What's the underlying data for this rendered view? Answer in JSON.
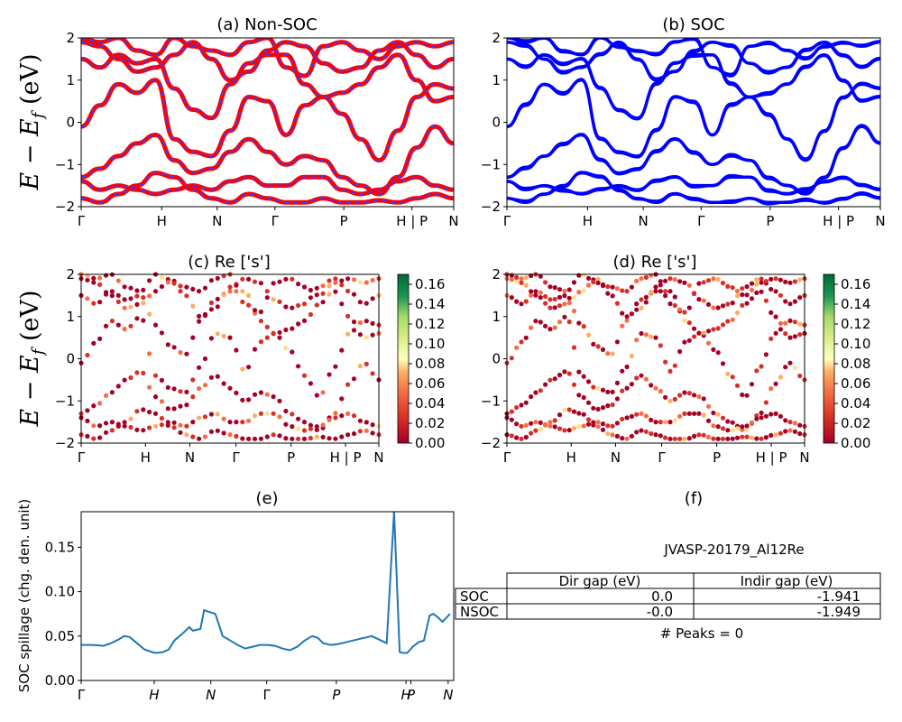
{
  "figure": {
    "ylabel_bands": "E − E_f (eV)",
    "ylabel_spillage": "SOC spillage (chg. den. unit)"
  },
  "colors": {
    "nonsoc_red": "#ff0000",
    "nonsoc_blue": "#3b3bff",
    "soc_blue": "#0000ff",
    "spillage_line": "#1f77b4"
  },
  "chart_data": [
    {
      "id": "a",
      "type": "line",
      "title": "(a) Non-SOC",
      "ylim": [
        -2,
        2
      ],
      "yticks": [
        "2",
        "1",
        "0",
        "−1",
        "−2"
      ],
      "xticks": [
        "Γ",
        "H",
        "N",
        "Γ",
        "P",
        "H | P",
        "N"
      ],
      "xtick_pos": [
        0,
        0.216,
        0.365,
        0.52,
        0.705,
        0.888,
        1.0
      ],
      "series": [
        {
          "x": [
            0,
            0.05,
            0.1,
            0.15,
            0.2,
            0.25,
            0.3,
            0.35,
            0.4,
            0.45,
            0.5,
            0.55,
            0.6,
            0.65,
            0.7,
            0.75,
            0.8,
            0.85,
            0.9,
            0.95,
            1
          ],
          "values": [
            -0.1,
            0.4,
            0.9,
            0.7,
            1.0,
            -0.4,
            -0.7,
            -0.8,
            -0.2,
            0.6,
            0.5,
            -0.3,
            0.4,
            0.6,
            0.2,
            -0.4,
            -0.9,
            -0.2,
            0.6,
            0.9,
            0.8
          ]
        },
        {
          "x": [
            0,
            0.05,
            0.1,
            0.15,
            0.2,
            0.25,
            0.3,
            0.35,
            0.4,
            0.45,
            0.5,
            0.55,
            0.6,
            0.65,
            0.7,
            0.75,
            0.8,
            0.85,
            0.9,
            0.95,
            1
          ],
          "values": [
            1.5,
            1.3,
            1.6,
            1.4,
            1.5,
            0.8,
            0.3,
            0.1,
            0.9,
            1.4,
            1.6,
            1.6,
            0.9,
            0.6,
            0.7,
            0.9,
            1.3,
            1.6,
            1.0,
            0.5,
            0.6
          ]
        },
        {
          "x": [
            0,
            0.05,
            0.1,
            0.15,
            0.2,
            0.25,
            0.3,
            0.35,
            0.4,
            0.45,
            0.5,
            0.55,
            0.6,
            0.65,
            0.7,
            0.75,
            0.8,
            0.85,
            0.9,
            0.95,
            1
          ],
          "values": [
            -1.3,
            -1.1,
            -0.8,
            -0.5,
            -0.3,
            -0.9,
            -1.2,
            -1.1,
            -0.7,
            -0.4,
            -0.7,
            -1.0,
            -0.8,
            -0.9,
            -1.3,
            -1.5,
            -1.7,
            -1.3,
            -0.6,
            -0.1,
            -0.5
          ]
        },
        {
          "x": [
            0,
            0.05,
            0.1,
            0.15,
            0.2,
            0.25,
            0.3,
            0.35,
            0.4,
            0.45,
            0.5,
            0.55,
            0.6,
            0.65,
            0.7,
            0.75,
            0.8,
            0.85,
            0.9,
            0.95,
            1
          ],
          "values": [
            -1.4,
            -1.6,
            -1.5,
            -1.6,
            -1.7,
            -1.6,
            -1.5,
            -1.6,
            -1.4,
            -1.3,
            -1.5,
            -1.5,
            -1.3,
            -1.3,
            -1.6,
            -1.7,
            -1.6,
            -1.4,
            -1.3,
            -1.5,
            -1.6
          ]
        },
        {
          "x": [
            0,
            0.05,
            0.1,
            0.15,
            0.2,
            0.25,
            0.3,
            0.35,
            0.4,
            0.45,
            0.5,
            0.55,
            0.6,
            0.65,
            0.7,
            0.75,
            0.8,
            0.85,
            0.9,
            0.95,
            1
          ],
          "values": [
            -1.8,
            -1.9,
            -1.7,
            -1.5,
            -1.2,
            -1.3,
            -1.6,
            -1.8,
            -1.9,
            -1.7,
            -1.8,
            -1.9,
            -1.9,
            -1.8,
            -1.9,
            -1.9,
            -1.85,
            -1.9,
            -1.8,
            -1.7,
            -1.8
          ]
        },
        {
          "x": [
            0,
            0.05,
            0.1,
            0.15,
            0.2,
            0.25,
            0.3,
            0.35,
            0.4,
            0.45,
            0.5,
            0.55,
            0.6,
            0.65,
            0.7,
            0.75,
            0.8,
            0.85,
            0.9,
            0.95,
            1
          ],
          "values": [
            1.9,
            1.8,
            1.5,
            1.2,
            1.3,
            1.6,
            1.9,
            1.5,
            1.0,
            1.2,
            1.7,
            1.9,
            1.8,
            1.4,
            1.2,
            1.3,
            1.7,
            1.9,
            1.6,
            1.3,
            1.5
          ]
        },
        {
          "x": [
            0,
            0.05,
            0.1,
            0.15,
            0.2,
            0.25,
            0.3,
            0.35,
            0.4,
            0.45,
            0.5,
            0.55,
            0.6,
            0.65,
            0.7,
            0.75,
            0.8,
            0.85,
            0.9,
            0.95,
            1
          ],
          "values": [
            2.0,
            1.9,
            2.0,
            1.7,
            1.6,
            2.0,
            1.8,
            1.7,
            1.6,
            1.9,
            2.0,
            1.3,
            1.1,
            1.8,
            1.9,
            1.7,
            1.5,
            1.8,
            1.9,
            1.8,
            1.9
          ]
        }
      ]
    },
    {
      "id": "b",
      "type": "line",
      "title": "(b) SOC",
      "ylim": [
        -2,
        2
      ],
      "yticks": [
        "2",
        "1",
        "0",
        "−1",
        "−2"
      ],
      "xticks": [
        "Γ",
        "H",
        "N",
        "Γ",
        "P",
        "H | P",
        "N"
      ],
      "xtick_pos": [
        0,
        0.216,
        0.365,
        0.52,
        0.705,
        0.888,
        1.0
      ],
      "series": [
        {
          "x": [
            0,
            0.05,
            0.1,
            0.15,
            0.2,
            0.25,
            0.3,
            0.35,
            0.4,
            0.45,
            0.5,
            0.55,
            0.6,
            0.65,
            0.7,
            0.75,
            0.8,
            0.85,
            0.9,
            0.95,
            1
          ],
          "values": [
            -0.1,
            0.4,
            0.9,
            0.7,
            1.0,
            -0.4,
            -0.7,
            -0.8,
            -0.2,
            0.6,
            0.5,
            -0.3,
            0.4,
            0.6,
            0.2,
            -0.4,
            -0.9,
            -0.2,
            0.6,
            0.9,
            0.8
          ]
        },
        {
          "x": [
            0,
            0.05,
            0.1,
            0.15,
            0.2,
            0.25,
            0.3,
            0.35,
            0.4,
            0.45,
            0.5,
            0.55,
            0.6,
            0.65,
            0.7,
            0.75,
            0.8,
            0.85,
            0.9,
            0.95,
            1
          ],
          "values": [
            1.5,
            1.3,
            1.6,
            1.4,
            1.5,
            0.8,
            0.3,
            0.1,
            0.9,
            1.4,
            1.6,
            1.6,
            0.9,
            0.6,
            0.7,
            0.9,
            1.3,
            1.6,
            1.0,
            0.5,
            0.6
          ]
        },
        {
          "x": [
            0,
            0.05,
            0.1,
            0.15,
            0.2,
            0.25,
            0.3,
            0.35,
            0.4,
            0.45,
            0.5,
            0.55,
            0.6,
            0.65,
            0.7,
            0.75,
            0.8,
            0.85,
            0.9,
            0.95,
            1
          ],
          "values": [
            -1.3,
            -1.1,
            -0.8,
            -0.5,
            -0.3,
            -0.9,
            -1.2,
            -1.1,
            -0.7,
            -0.4,
            -0.7,
            -1.0,
            -0.8,
            -0.9,
            -1.3,
            -1.5,
            -1.7,
            -1.3,
            -0.6,
            -0.1,
            -0.5
          ]
        },
        {
          "x": [
            0,
            0.05,
            0.1,
            0.15,
            0.2,
            0.25,
            0.3,
            0.35,
            0.4,
            0.45,
            0.5,
            0.55,
            0.6,
            0.65,
            0.7,
            0.75,
            0.8,
            0.85,
            0.9,
            0.95,
            1
          ],
          "values": [
            -1.4,
            -1.6,
            -1.5,
            -1.6,
            -1.7,
            -1.6,
            -1.5,
            -1.6,
            -1.4,
            -1.3,
            -1.5,
            -1.5,
            -1.3,
            -1.3,
            -1.6,
            -1.7,
            -1.6,
            -1.4,
            -1.3,
            -1.5,
            -1.6
          ]
        },
        {
          "x": [
            0,
            0.05,
            0.1,
            0.15,
            0.2,
            0.25,
            0.3,
            0.35,
            0.4,
            0.45,
            0.5,
            0.55,
            0.6,
            0.65,
            0.7,
            0.75,
            0.8,
            0.85,
            0.9,
            0.95,
            1
          ],
          "values": [
            -1.8,
            -1.9,
            -1.7,
            -1.5,
            -1.2,
            -1.3,
            -1.6,
            -1.8,
            -1.9,
            -1.7,
            -1.8,
            -1.9,
            -1.9,
            -1.8,
            -1.9,
            -1.9,
            -1.85,
            -1.9,
            -1.8,
            -1.7,
            -1.8
          ]
        },
        {
          "x": [
            0,
            0.05,
            0.1,
            0.15,
            0.2,
            0.25,
            0.3,
            0.35,
            0.4,
            0.45,
            0.5,
            0.55,
            0.6,
            0.65,
            0.7,
            0.75,
            0.8,
            0.85,
            0.9,
            0.95,
            1
          ],
          "values": [
            1.9,
            1.8,
            1.5,
            1.2,
            1.3,
            1.6,
            1.9,
            1.5,
            1.0,
            1.2,
            1.7,
            1.9,
            1.8,
            1.4,
            1.2,
            1.3,
            1.7,
            1.9,
            1.6,
            1.3,
            1.5
          ]
        },
        {
          "x": [
            0,
            0.05,
            0.1,
            0.15,
            0.2,
            0.25,
            0.3,
            0.35,
            0.4,
            0.45,
            0.5,
            0.55,
            0.6,
            0.65,
            0.7,
            0.75,
            0.8,
            0.85,
            0.9,
            0.95,
            1
          ],
          "values": [
            2.0,
            1.9,
            2.0,
            1.7,
            1.6,
            2.0,
            1.8,
            1.7,
            1.6,
            1.9,
            2.0,
            1.3,
            1.1,
            1.8,
            1.9,
            1.7,
            1.5,
            1.8,
            1.9,
            1.8,
            1.9
          ]
        }
      ]
    },
    {
      "id": "c",
      "type": "scatter",
      "title": "(c)  Re ['s']",
      "ylim": [
        -2,
        2
      ],
      "yticks": [
        "2",
        "1",
        "0",
        "−1",
        "−2"
      ],
      "xticks": [
        "Γ",
        "H",
        "N",
        "Γ",
        "P",
        "H | P",
        "N"
      ],
      "xtick_pos": [
        0,
        0.216,
        0.365,
        0.52,
        0.705,
        0.888,
        1.0
      ],
      "colorbar": {
        "range": [
          0,
          0.17
        ],
        "ticks": [
          "0.16",
          "0.14",
          "0.12",
          "0.10",
          "0.08",
          "0.06",
          "0.04",
          "0.02",
          "0.00"
        ]
      }
    },
    {
      "id": "d",
      "type": "scatter",
      "title": "(d) Re ['s']",
      "ylim": [
        -2,
        2
      ],
      "yticks": [
        "2",
        "1",
        "0",
        "−1",
        "−2"
      ],
      "xticks": [
        "Γ",
        "H",
        "N",
        "Γ",
        "P",
        "H | P",
        "N"
      ],
      "xtick_pos": [
        0,
        0.216,
        0.365,
        0.52,
        0.705,
        0.888,
        1.0
      ],
      "colorbar": {
        "range": [
          0,
          0.17
        ],
        "ticks": [
          "0.16",
          "0.14",
          "0.12",
          "0.10",
          "0.08",
          "0.06",
          "0.04",
          "0.02",
          "0.00"
        ]
      }
    },
    {
      "id": "e",
      "type": "line",
      "title": "(e)",
      "ylabel": "SOC spillage (chg. den. unit)",
      "ylim": [
        0,
        0.19
      ],
      "yticks": [
        "0.15",
        "0.10",
        "0.05",
        "0.00"
      ],
      "ytick_vals": [
        0.15,
        0.1,
        0.05,
        0.0
      ],
      "xticks": [
        "Γ",
        "H",
        "N",
        "Γ",
        "P",
        "H",
        "P",
        "N"
      ],
      "xtick_pos": [
        0,
        0.196,
        0.348,
        0.498,
        0.685,
        0.872,
        0.885,
        0.985
      ],
      "x": [
        0,
        0.03,
        0.06,
        0.08,
        0.1,
        0.115,
        0.13,
        0.15,
        0.17,
        0.19,
        0.2,
        0.22,
        0.235,
        0.25,
        0.27,
        0.29,
        0.3,
        0.32,
        0.33,
        0.345,
        0.36,
        0.38,
        0.4,
        0.42,
        0.44,
        0.46,
        0.48,
        0.5,
        0.52,
        0.54,
        0.56,
        0.58,
        0.6,
        0.62,
        0.635,
        0.65,
        0.67,
        0.69,
        0.71,
        0.73,
        0.75,
        0.78,
        0.8,
        0.82,
        0.84,
        0.855,
        0.865,
        0.875,
        0.89,
        0.905,
        0.92,
        0.935,
        0.945,
        0.955,
        0.97,
        0.99
      ],
      "values": [
        0.04,
        0.04,
        0.039,
        0.042,
        0.046,
        0.05,
        0.049,
        0.042,
        0.035,
        0.032,
        0.031,
        0.032,
        0.035,
        0.045,
        0.052,
        0.06,
        0.056,
        0.058,
        0.079,
        0.077,
        0.075,
        0.05,
        0.045,
        0.04,
        0.036,
        0.038,
        0.04,
        0.04,
        0.039,
        0.036,
        0.034,
        0.038,
        0.045,
        0.05,
        0.048,
        0.042,
        0.04,
        0.041,
        0.043,
        0.045,
        0.047,
        0.05,
        0.046,
        0.042,
        0.19,
        0.032,
        0.031,
        0.031,
        0.038,
        0.043,
        0.045,
        0.073,
        0.075,
        0.072,
        0.066,
        0.075
      ]
    },
    {
      "id": "f",
      "type": "table",
      "title": "(f)",
      "subtitle": "JVASP-20179_Al12Re",
      "columns": [
        "",
        "Dir gap (eV)",
        "Indir gap (eV)"
      ],
      "rows": [
        [
          "SOC",
          "0.0",
          "-1.941"
        ],
        [
          "NSOC",
          "-0.0",
          "-1.949"
        ]
      ],
      "footer": "# Peaks = 0"
    }
  ]
}
